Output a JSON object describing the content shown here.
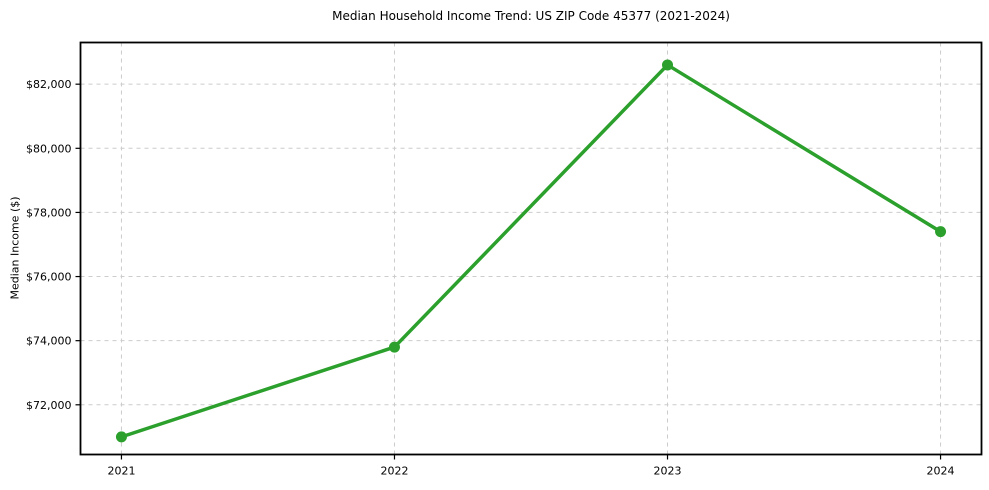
{
  "colors": {
    "line": "#2ca02c",
    "grid": "#cccccc",
    "spine": "#000000",
    "text": "#000000",
    "background": "#ffffff"
  },
  "chart_data": {
    "type": "line",
    "title": "Median Household Income Trend: US ZIP Code 45377 (2021-2024)",
    "xlabel": "",
    "ylabel": "Median Income ($)",
    "x": [
      2021,
      2022,
      2023,
      2024
    ],
    "x_tick_labels": [
      "2021",
      "2022",
      "2023",
      "2024"
    ],
    "values": [
      71000,
      73800,
      82600,
      77400
    ],
    "yticks": [
      72000,
      74000,
      76000,
      78000,
      80000,
      82000
    ],
    "y_tick_labels": [
      "$72,000",
      "$74,000",
      "$76,000",
      "$78,000",
      "$80,000",
      "$82,000"
    ],
    "xlim": [
      2020.85,
      2024.15
    ],
    "ylim": [
      70450,
      83300
    ],
    "grid": true,
    "grid_style": "dashed",
    "legend": false,
    "marker": "circle",
    "line_color": "#2ca02c"
  }
}
